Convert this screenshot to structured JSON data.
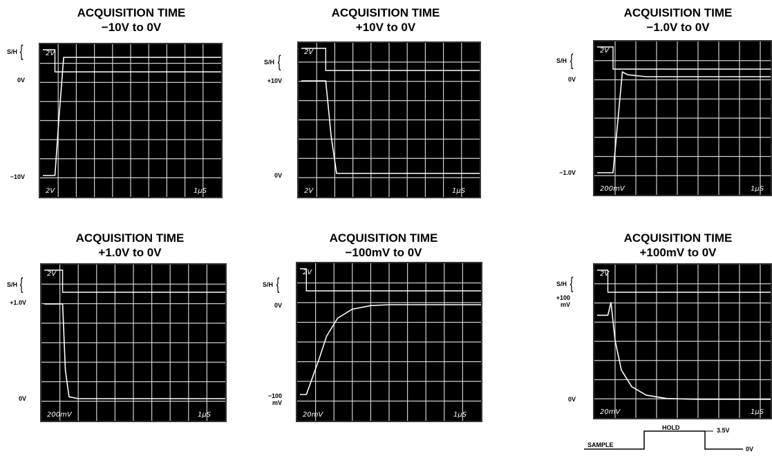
{
  "chart_data": [
    {
      "type": "line",
      "title": "ACQUISITION TIME",
      "subtitle": "−10V to 0V",
      "series": [
        {
          "x": [
            0,
            0.82,
            1.05,
            1.3,
            2.3,
            3,
            4,
            5,
            6,
            7,
            8,
            9,
            10
          ],
          "values": [
            -10,
            -10,
            -5,
            0,
            0,
            0,
            0,
            0,
            0,
            0,
            0,
            0,
            0
          ]
        }
      ],
      "y_labels": [
        "0V",
        "−10V"
      ],
      "sh_label": "S/H",
      "scale_left_top": "2V",
      "scale_left_bottom": "2V",
      "scale_right_bottom": "1μS",
      "colors": {
        "screen": "#000000",
        "trace": "#ffffff",
        "grid": "#d0d0d0"
      }
    },
    {
      "type": "line",
      "title": "ACQUISITION TIME",
      "subtitle": "+10V to 0V",
      "series": [
        {
          "x": [
            0,
            1.5,
            1.8,
            2.1,
            3,
            4,
            5,
            6,
            7,
            8,
            9,
            10
          ],
          "values": [
            10,
            10,
            4,
            0,
            0,
            0,
            0,
            0,
            0,
            0,
            0,
            0
          ]
        }
      ],
      "y_labels": [
        "+10V",
        "0V"
      ],
      "sh_label": "S/H",
      "scale_left_top": "2V",
      "scale_left_bottom": "2V",
      "scale_right_bottom": "1μS"
    },
    {
      "type": "line",
      "title": "ACQUISITION TIME",
      "subtitle": "−1.0V to 0V",
      "series": [
        {
          "x": [
            0,
            0.9,
            1.2,
            1.35,
            1.6,
            2.5,
            4,
            6,
            8,
            10
          ],
          "values": [
            -1,
            -1,
            -0.3,
            0.05,
            0.02,
            0,
            0,
            0,
            0,
            0
          ]
        }
      ],
      "y_labels": [
        "0V",
        "−1.0V"
      ],
      "sh_label": "S/H",
      "scale_left_top": "2V",
      "scale_left_bottom": "200mV",
      "scale_right_bottom": "1μS"
    },
    {
      "type": "line",
      "title": "ACQUISITION TIME",
      "subtitle": "+1.0V to 0V",
      "series": [
        {
          "x": [
            0,
            1.15,
            1.3,
            1.5,
            2,
            3,
            5,
            8,
            10
          ],
          "values": [
            1,
            1,
            0.3,
            0.02,
            0,
            0,
            0,
            0,
            0
          ]
        }
      ],
      "y_labels": [
        "+1.0V",
        "0V"
      ],
      "sh_label": "S/H",
      "scale_left_top": "2V",
      "scale_left_bottom": "200mV",
      "scale_right_bottom": "1μS"
    },
    {
      "type": "line",
      "title": "ACQUISITION TIME",
      "subtitle": "−100mV to 0V",
      "series": [
        {
          "x": [
            0,
            0.5,
            1.2,
            1.6,
            2.2,
            3,
            4,
            5,
            6,
            7,
            8,
            10
          ],
          "values": [
            -100,
            -100,
            -60,
            -35,
            -15,
            -5,
            -1,
            0,
            0,
            0,
            0,
            0
          ]
        }
      ],
      "y_labels": [
        "0V",
        "−100 mV"
      ],
      "sh_label": "S/H",
      "scale_left_top": "2V",
      "scale_left_bottom": "20mV",
      "scale_right_bottom": "1μS"
    },
    {
      "type": "line",
      "title": "ACQUISITION TIME",
      "subtitle": "+100mV to 0V",
      "series": [
        {
          "x": [
            0,
            0.65,
            0.8,
            1.0,
            1.3,
            1.8,
            2.5,
            3.5,
            5,
            7,
            10
          ],
          "values": [
            100,
            100,
            115,
            70,
            35,
            15,
            5,
            1,
            0,
            0,
            0
          ]
        }
      ],
      "y_labels": [
        "+100 mV",
        "0V"
      ],
      "sh_label": "S/H",
      "scale_left_top": "2V",
      "scale_left_bottom": "20mV",
      "scale_right_bottom": "1μS"
    }
  ],
  "timing_legend": {
    "sample": "SAMPLE",
    "hold": "HOLD",
    "high": "3.5V",
    "low": "0V"
  }
}
